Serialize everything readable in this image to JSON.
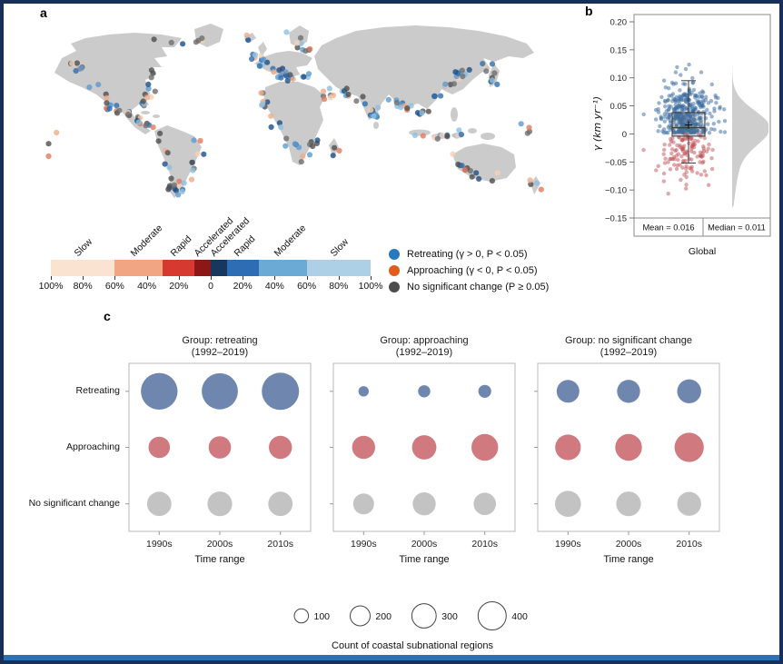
{
  "panels": {
    "a_label": "a",
    "b_label": "b",
    "c_label": "c"
  },
  "panel_a": {
    "map": {
      "land_color": "#cbcbcb",
      "ocean_color": "#ffffff",
      "dot_radius": 3.1,
      "palettes": {
        "retreating": [
          "#1f4e86",
          "#2e6fb0",
          "#5b9ad0",
          "#8fbfe0"
        ],
        "approaching": [
          "#f6d0b4",
          "#efab87",
          "#e4795c"
        ],
        "no_change": [
          "#4f4f4f",
          "#6e6e6e"
        ]
      },
      "tracks": [
        {
          "pts": [
            [
              44,
              46
            ],
            [
              54,
              56
            ],
            [
              66,
              64
            ]
          ],
          "n": 7,
          "mix": [
            0.35,
            0.15,
            0.5
          ]
        },
        {
          "pts": [
            [
              70,
              72
            ],
            [
              78,
              86
            ],
            [
              88,
              98
            ],
            [
              96,
              106
            ]
          ],
          "n": 13,
          "mix": [
            0.45,
            0.3,
            0.25
          ]
        },
        {
          "pts": [
            [
              132,
              60
            ],
            [
              136,
              76
            ],
            [
              130,
              92
            ],
            [
              126,
              100
            ]
          ],
          "n": 13,
          "mix": [
            0.6,
            0.15,
            0.25
          ]
        },
        {
          "pts": [
            [
              104,
              102
            ],
            [
              116,
              112
            ],
            [
              130,
              120
            ],
            [
              140,
              124
            ]
          ],
          "n": 15,
          "mix": [
            0.3,
            0.4,
            0.3
          ]
        },
        {
          "pts": [
            [
              142,
              130
            ],
            [
              150,
              152
            ],
            [
              158,
              178
            ],
            [
              160,
              196
            ]
          ],
          "n": 13,
          "mix": [
            0.4,
            0.2,
            0.4
          ]
        },
        {
          "pts": [
            [
              184,
              134
            ],
            [
              188,
              152
            ],
            [
              174,
              178
            ],
            [
              162,
              198
            ]
          ],
          "n": 15,
          "mix": [
            0.5,
            0.3,
            0.2
          ]
        },
        {
          "pts": [
            [
              248,
              42
            ],
            [
              258,
              52
            ],
            [
              272,
              60
            ],
            [
              288,
              64
            ]
          ],
          "n": 18,
          "mix": [
            0.7,
            0.1,
            0.2
          ]
        },
        {
          "pts": [
            [
              288,
              18
            ],
            [
              298,
              28
            ],
            [
              306,
              40
            ]
          ],
          "n": 9,
          "mix": [
            0.6,
            0.1,
            0.3
          ]
        },
        {
          "pts": [
            [
              262,
              64
            ],
            [
              282,
              68
            ],
            [
              302,
              66
            ],
            [
              316,
              72
            ]
          ],
          "n": 13,
          "mix": [
            0.65,
            0.15,
            0.2
          ]
        },
        {
          "pts": [
            [
              260,
              82
            ],
            [
              262,
              104
            ],
            [
              276,
              126
            ],
            [
              292,
              144
            ]
          ],
          "n": 16,
          "mix": [
            0.5,
            0.3,
            0.2
          ]
        },
        {
          "pts": [
            [
              298,
              162
            ],
            [
              308,
              148
            ],
            [
              318,
              132
            ]
          ],
          "n": 8,
          "mix": [
            0.4,
            0.2,
            0.4
          ]
        },
        {
          "pts": [
            [
              322,
              96
            ],
            [
              328,
              86
            ],
            [
              338,
              80
            ]
          ],
          "n": 7,
          "mix": [
            0.4,
            0.3,
            0.3
          ]
        },
        {
          "pts": [
            [
              344,
              82
            ],
            [
              356,
              88
            ],
            [
              364,
              92
            ]
          ],
          "n": 8,
          "mix": [
            0.4,
            0.3,
            0.3
          ]
        },
        {
          "pts": [
            [
              370,
              96
            ],
            [
              380,
              112
            ],
            [
              390,
              98
            ]
          ],
          "n": 13,
          "mix": [
            0.7,
            0.15,
            0.15
          ]
        },
        {
          "pts": [
            [
              398,
              92
            ],
            [
              412,
              100
            ],
            [
              426,
              108
            ],
            [
              440,
              100
            ]
          ],
          "n": 16,
          "mix": [
            0.7,
            0.1,
            0.2
          ]
        },
        {
          "pts": [
            [
              446,
              92
            ],
            [
              458,
              78
            ],
            [
              470,
              66
            ],
            [
              484,
              60
            ]
          ],
          "n": 18,
          "mix": [
            0.65,
            0.15,
            0.2
          ]
        },
        {
          "pts": [
            [
              500,
              48
            ],
            [
              508,
              60
            ],
            [
              514,
              72
            ]
          ],
          "n": 9,
          "mix": [
            0.5,
            0.1,
            0.4
          ]
        },
        {
          "pts": [
            [
              428,
              128
            ],
            [
              450,
              132
            ],
            [
              470,
              130
            ],
            [
              490,
              126
            ]
          ],
          "n": 12,
          "mix": [
            0.5,
            0.2,
            0.3
          ]
        },
        {
          "pts": [
            [
              468,
              152
            ],
            [
              482,
              172
            ],
            [
              506,
              180
            ],
            [
              528,
              170
            ],
            [
              534,
              154
            ]
          ],
          "n": 13,
          "mix": [
            0.3,
            0.2,
            0.5
          ]
        },
        {
          "pts": [
            [
              554,
              182
            ],
            [
              560,
              192
            ]
          ],
          "n": 4,
          "mix": [
            0.3,
            0.2,
            0.5
          ]
        },
        {
          "pts": [
            [
              130,
              24
            ],
            [
              158,
              26
            ],
            [
              186,
              28
            ],
            [
              212,
              22
            ]
          ],
          "n": 7,
          "mix": [
            0.3,
            0.1,
            0.6
          ]
        },
        {
          "pts": [
            [
              30,
              120
            ],
            [
              22,
              156
            ]
          ],
          "n": 3,
          "mix": [
            0.2,
            0.2,
            0.6
          ]
        },
        {
          "pts": [
            [
              544,
              118
            ],
            [
              556,
              138
            ]
          ],
          "n": 4,
          "mix": [
            0.4,
            0.2,
            0.4
          ]
        },
        {
          "pts": [
            [
              240,
              22
            ],
            [
              246,
              24
            ]
          ],
          "n": 3,
          "mix": [
            0.5,
            0.1,
            0.4
          ]
        },
        {
          "pts": [
            [
              332,
              146
            ],
            [
              336,
              152
            ]
          ],
          "n": 3,
          "mix": [
            0.4,
            0.3,
            0.3
          ]
        }
      ]
    },
    "colorbar": {
      "segments": [
        {
          "label": "Slow",
          "color": "#fbe3d2",
          "width": 20
        },
        {
          "label": "Moderate",
          "color": "#f2a583",
          "width": 15
        },
        {
          "label": "Rapid",
          "color": "#d6392f",
          "width": 10
        },
        {
          "label": "Accelerated",
          "color": "#8c1717",
          "width": 5
        },
        {
          "label": "Accelerated",
          "color": "#17375e",
          "width": 5
        },
        {
          "label": "Rapid",
          "color": "#2e6db4",
          "width": 10
        },
        {
          "label": "Moderate",
          "color": "#6aaad4",
          "width": 15
        },
        {
          "label": "Slow",
          "color": "#aed0e6",
          "width": 20
        }
      ],
      "ticks": [
        "100%",
        "80%",
        "60%",
        "40%",
        "20%",
        "0",
        "20%",
        "40%",
        "60%",
        "80%",
        "100%"
      ]
    },
    "legend": [
      {
        "label": "Retreating (γ > 0, P < 0.05)",
        "color": "#2779bd"
      },
      {
        "label": "Approaching (γ < 0, P < 0.05)",
        "color": "#e25a1c"
      },
      {
        "label": "No significant change (P ≥ 0.05)",
        "color": "#4d4d4d"
      }
    ]
  },
  "chart_data": [
    {
      "id": "global_gamma_raincloud",
      "type": "scatter",
      "xlabel": "Global",
      "ylabel": "γ (km yr⁻¹)",
      "ylim": [
        -0.15,
        0.2
      ],
      "yticks": [
        0.2,
        0.15,
        0.1,
        0.05,
        0,
        -0.05,
        -0.1,
        -0.15
      ],
      "box": {
        "median": 0.011,
        "mean": 0.016,
        "q1": -0.004,
        "q3": 0.038,
        "whisker_low": -0.052,
        "whisker_high": 0.095
      },
      "stats_labels": {
        "mean": "Mean = 0.016",
        "median": "Median = 0.011"
      },
      "point_groups": [
        {
          "name": "retreating",
          "n": 380,
          "color": "#35679e",
          "abs_mean": 0.03,
          "abs_sd": 0.031,
          "sign": 1,
          "max_abs": 0.188
        },
        {
          "name": "approaching",
          "n": 125,
          "color": "#bf5157",
          "abs_mean": 0.026,
          "abs_sd": 0.027,
          "sign": -1,
          "max_abs": 0.124
        }
      ],
      "violin": {
        "color": "#c9c9c9",
        "center": 0.012,
        "bandwidth": 0.03,
        "tail_center": -0.045,
        "tail_bandwidth": 0.05,
        "tail_amp": 7,
        "main_amp": 38
      }
    },
    {
      "id": "group_bubble_matrix",
      "type": "bubble",
      "subplot_titles": [
        [
          "Group: retreating",
          "(1992–2019)"
        ],
        [
          "Group: approaching",
          "(1992–2019)"
        ],
        [
          "Group: no significant change",
          "(1992–2019)"
        ]
      ],
      "rows": [
        "Retreating",
        "Approaching",
        "No significant change"
      ],
      "row_colors": [
        "#5b76a4",
        "#c9666c",
        "#bbbbbb"
      ],
      "categories": [
        "1990s",
        "2000s",
        "2010s"
      ],
      "xlabel": "Time range",
      "counts": [
        [
          [
            680,
            660,
            700
          ],
          [
            230,
            250,
            270
          ],
          [
            300,
            310,
            300
          ]
        ],
        [
          [
            55,
            75,
            85
          ],
          [
            270,
            300,
            360
          ],
          [
            220,
            270,
            250
          ]
        ],
        [
          [
            260,
            270,
            290
          ],
          [
            330,
            360,
            430
          ],
          [
            340,
            310,
            290
          ]
        ]
      ],
      "size_legend": {
        "values": [
          100,
          200,
          300,
          400
        ],
        "caption": "Count of coastal subnational regions"
      }
    }
  ]
}
